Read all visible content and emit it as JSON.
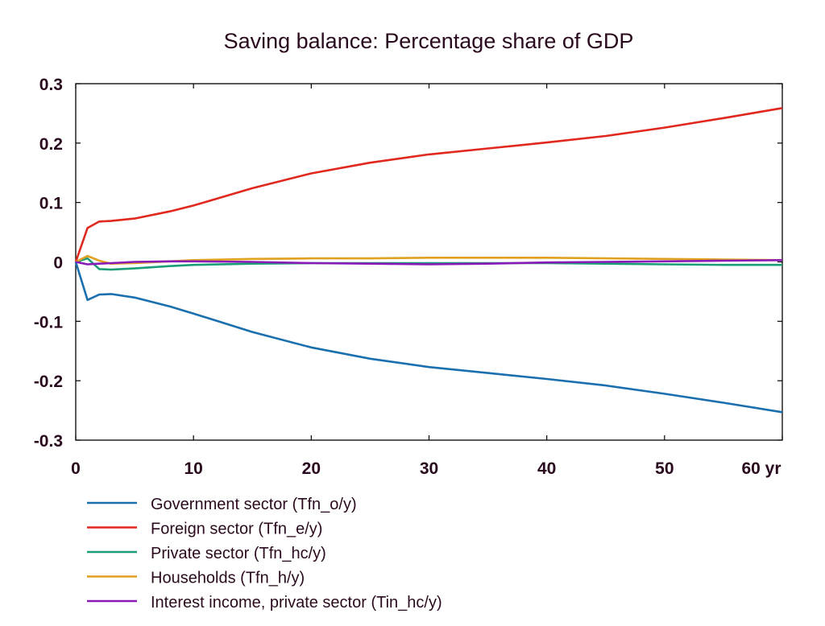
{
  "chart_data": {
    "type": "line",
    "title": "Saving balance: Percentage share of GDP",
    "xlabel": "",
    "ylabel": "",
    "xlim": [
      0,
      60
    ],
    "ylim": [
      -0.3,
      0.3
    ],
    "x_ticks": [
      0,
      10,
      20,
      30,
      40,
      50,
      60
    ],
    "x_tick_labels": [
      "0",
      "10",
      "20",
      "30",
      "40",
      "50",
      "60 yr"
    ],
    "y_ticks": [
      0.3,
      0.2,
      0.1,
      0,
      -0.1,
      -0.2,
      -0.3
    ],
    "y_tick_labels": [
      "0.3",
      "0.2",
      "0.1",
      "0",
      "-0.1",
      "-0.2",
      "-0.3"
    ],
    "grid": false,
    "legend_position": "bottom",
    "series": [
      {
        "name": "Government sector (Tfn_o/y)",
        "color": "#1a6fae",
        "x": [
          0,
          1,
          2,
          3,
          5,
          8,
          10,
          15,
          20,
          25,
          30,
          35,
          40,
          45,
          50,
          55,
          60
        ],
        "y": [
          0,
          -0.064,
          -0.055,
          -0.054,
          -0.06,
          -0.075,
          -0.087,
          -0.118,
          -0.144,
          -0.163,
          -0.177,
          -0.187,
          -0.197,
          -0.208,
          -0.222,
          -0.237,
          -0.253
        ]
      },
      {
        "name": "Foreign sector (Tfn_e/y)",
        "color": "#e0281e",
        "x": [
          0,
          1,
          2,
          3,
          5,
          8,
          10,
          15,
          20,
          25,
          30,
          35,
          40,
          45,
          50,
          55,
          60
        ],
        "y": [
          0,
          0.057,
          0.068,
          0.069,
          0.073,
          0.085,
          0.095,
          0.124,
          0.149,
          0.167,
          0.181,
          0.191,
          0.201,
          0.212,
          0.226,
          0.242,
          0.259
        ]
      },
      {
        "name": "Private sector (Tfn_hc/y)",
        "color": "#1a9e78",
        "x": [
          0,
          1,
          2,
          3,
          5,
          8,
          10,
          15,
          20,
          25,
          30,
          35,
          40,
          45,
          50,
          55,
          60
        ],
        "y": [
          0,
          0.006,
          -0.012,
          -0.013,
          -0.011,
          -0.007,
          -0.005,
          -0.003,
          -0.002,
          -0.002,
          -0.002,
          -0.002,
          -0.002,
          -0.003,
          -0.004,
          -0.005,
          -0.005
        ]
      },
      {
        "name": "Households (Tfn_h/y)",
        "color": "#e0a020",
        "x": [
          0,
          1,
          2,
          3,
          5,
          8,
          10,
          15,
          20,
          25,
          30,
          35,
          40,
          45,
          50,
          55,
          60
        ],
        "y": [
          0,
          0.01,
          0.002,
          -0.003,
          -0.002,
          0.001,
          0.003,
          0.005,
          0.006,
          0.006,
          0.007,
          0.007,
          0.007,
          0.006,
          0.005,
          0.004,
          0.003
        ]
      },
      {
        "name": "Interest income, private sector (Tin_hc/y)",
        "color": "#8a1ab8",
        "x": [
          0,
          1,
          2,
          3,
          5,
          8,
          10,
          15,
          20,
          25,
          30,
          35,
          40,
          45,
          50,
          55,
          60
        ],
        "y": [
          0,
          -0.004,
          -0.003,
          -0.002,
          0.0,
          0.001,
          0.001,
          0.0,
          -0.002,
          -0.003,
          -0.004,
          -0.003,
          -0.001,
          0.0,
          0.001,
          0.002,
          0.003
        ]
      }
    ]
  }
}
